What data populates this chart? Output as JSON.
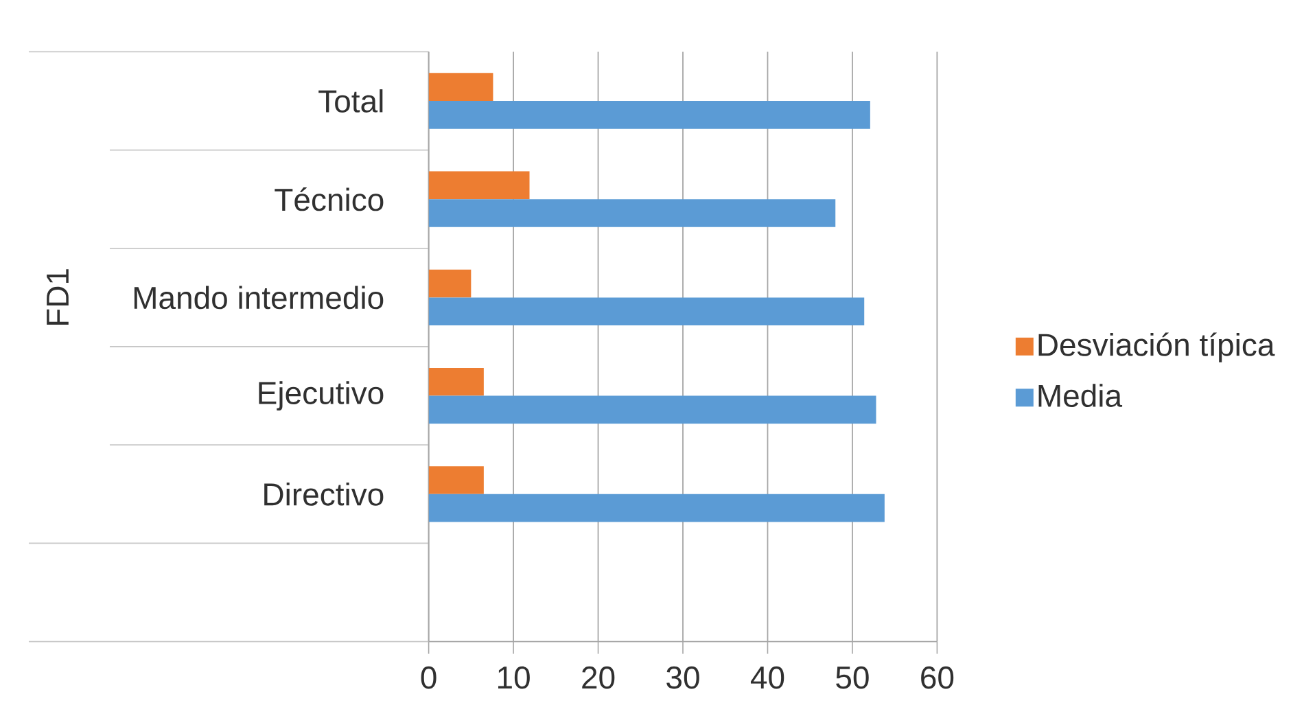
{
  "chart_data": {
    "type": "bar",
    "orientation": "horizontal",
    "ylabel": "FD1",
    "categories": [
      "Total",
      "Técnico",
      "Mando intermedio",
      "Ejecutivo",
      "Directivo",
      null
    ],
    "series": [
      {
        "name": "Desviación típica",
        "color": "#ed7d31",
        "values": [
          7.6,
          11.9,
          5.0,
          6.5,
          6.5,
          null
        ]
      },
      {
        "name": "Media",
        "color": "#5b9bd5",
        "values": [
          52.1,
          48.0,
          51.4,
          52.8,
          53.8,
          null
        ]
      }
    ],
    "xlim": [
      0,
      60
    ],
    "xticks": [
      0,
      10,
      20,
      30,
      40,
      50,
      60
    ],
    "grid": "x",
    "legend": "right"
  }
}
